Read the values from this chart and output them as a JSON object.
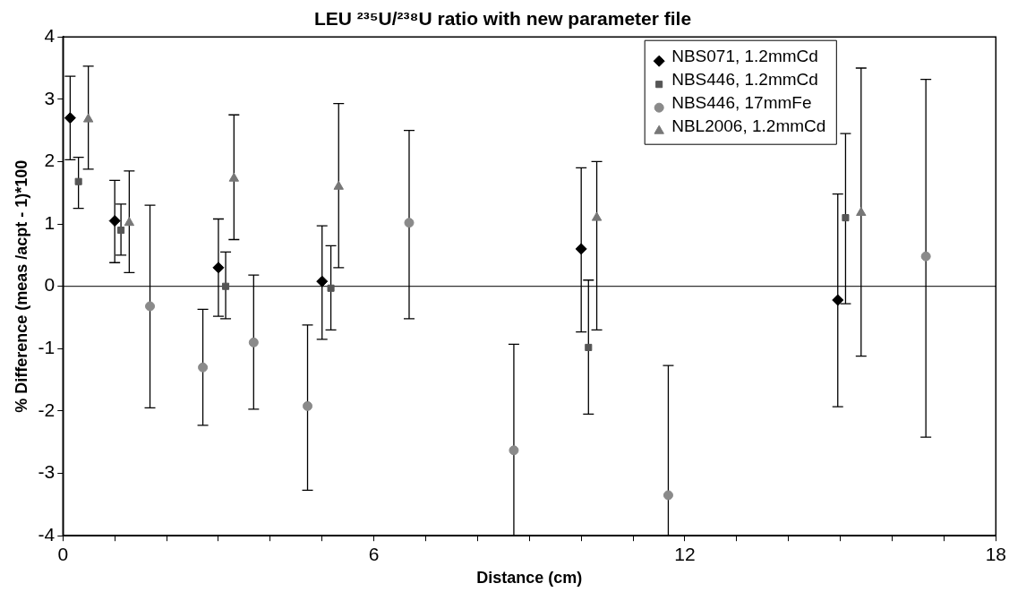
{
  "chart_data": {
    "type": "scatter",
    "title": "LEU ²³⁵U/²³⁸U ratio with new parameter file",
    "xlabel": "Distance (cm)",
    "ylabel": "% Difference (meas /acpt - 1)*100",
    "xlim": [
      0,
      18
    ],
    "xticks": [
      0,
      {
        "value": 1,
        "label": null
      },
      {
        "value": 2,
        "label": null
      },
      {
        "value": 3,
        "label": null
      },
      {
        "value": 4,
        "label": null
      },
      {
        "value": 5,
        "label": null
      },
      6,
      {
        "value": 7,
        "label": null
      },
      {
        "value": 8,
        "label": null
      },
      {
        "value": 9,
        "label": null
      },
      {
        "value": 10,
        "label": null
      },
      {
        "value": 11,
        "label": null
      },
      12,
      {
        "value": 13,
        "label": null
      },
      {
        "value": 14,
        "label": null
      },
      {
        "value": 15,
        "label": null
      },
      {
        "value": 16,
        "label": null
      },
      {
        "value": 17,
        "label": null
      },
      18
    ],
    "ylim": [
      -4,
      4
    ],
    "yticks": [
      -4,
      -3,
      -2,
      -1,
      0,
      1,
      2,
      3,
      4
    ],
    "grid": false,
    "legend": "top right",
    "ref_lines": [
      {
        "axis": "y",
        "value": 0,
        "color": "#000000"
      }
    ],
    "series": [
      {
        "name": "NBS071, 1.2mmCd",
        "color": "#000000",
        "marker": "diamond",
        "x": [
          0.14,
          1.0,
          3.0,
          5.0,
          10.0,
          14.95
        ],
        "values": [
          2.7,
          1.05,
          0.3,
          0.08,
          0.6,
          -0.22
        ],
        "errors": [
          [
            2.03,
            3.37
          ],
          [
            0.38,
            1.7
          ],
          [
            -0.48,
            1.08
          ],
          [
            -0.85,
            0.97
          ],
          [
            -0.73,
            1.9
          ],
          [
            -1.93,
            1.48
          ]
        ]
      },
      {
        "name": "NBS446, 1.2mmCd",
        "color": "#555555",
        "marker": "square",
        "x": [
          0.3,
          1.12,
          3.14,
          5.17,
          10.14,
          15.1
        ],
        "values": [
          1.68,
          0.9,
          0.0,
          -0.03,
          -0.98,
          1.1
        ],
        "errors": [
          [
            1.25,
            2.07
          ],
          [
            0.5,
            1.32
          ],
          [
            -0.52,
            0.55
          ],
          [
            -0.7,
            0.65
          ],
          [
            -2.05,
            0.1
          ],
          [
            -0.28,
            2.45
          ]
        ]
      },
      {
        "name": "NBS446, 17mmFe",
        "color": "#8a8a8a",
        "marker": "circle",
        "x": [
          1.68,
          2.7,
          3.68,
          4.72,
          6.68,
          8.7,
          11.68,
          16.65
        ],
        "values": [
          -0.32,
          -1.3,
          -0.9,
          -1.92,
          1.02,
          -2.63,
          -3.35,
          0.48
        ],
        "errors": [
          [
            -1.95,
            1.3
          ],
          [
            -2.23,
            -0.37
          ],
          [
            -1.97,
            0.18
          ],
          [
            -3.27,
            -0.62
          ],
          [
            -0.52,
            2.5
          ],
          [
            -4,
            -0.93
          ],
          [
            -4,
            -1.27
          ],
          [
            -2.42,
            3.32
          ]
        ]
      },
      {
        "name": "NBL2006, 1.2mmCd",
        "color": "#777777",
        "marker": "triangle",
        "x": [
          0.49,
          1.28,
          3.3,
          5.32,
          10.3,
          15.4
        ],
        "values": [
          2.68,
          1.02,
          1.73,
          1.6,
          1.1,
          1.18
        ],
        "errors": [
          [
            1.88,
            3.53
          ],
          [
            0.22,
            1.85
          ],
          [
            0.75,
            2.75
          ],
          [
            0.3,
            2.93
          ],
          [
            -0.7,
            2.0
          ],
          [
            -1.12,
            3.5
          ]
        ]
      }
    ]
  }
}
